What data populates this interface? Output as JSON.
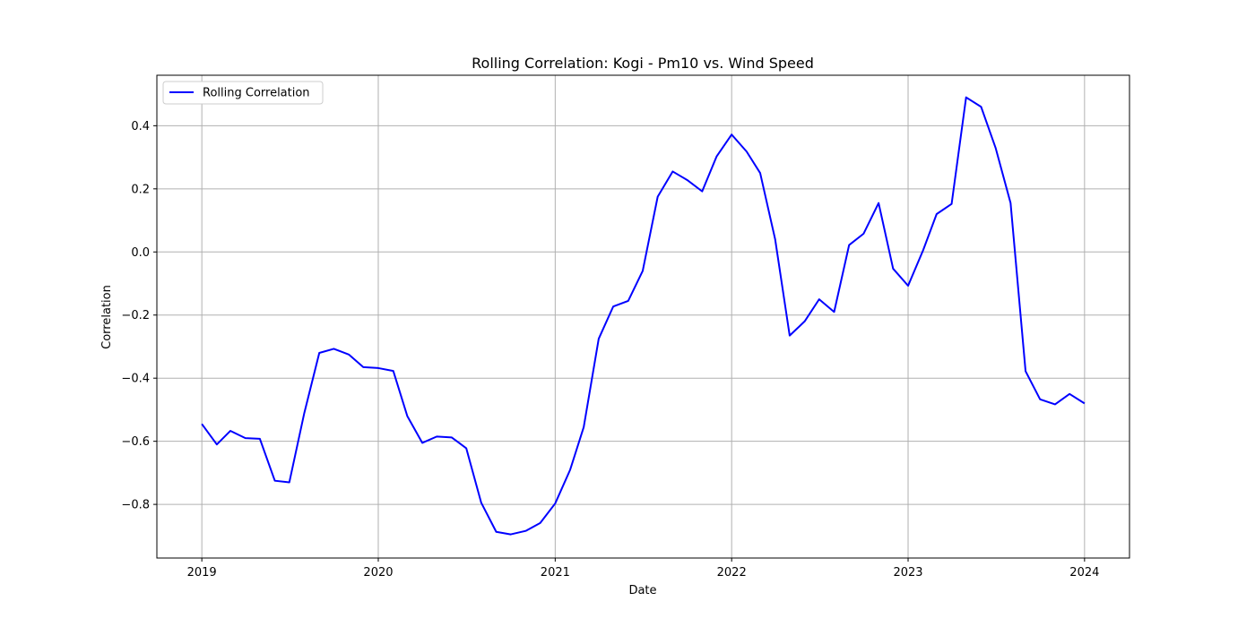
{
  "chart_data": {
    "type": "line",
    "title": "Rolling Correlation: Kogi - Pm10 vs. Wind Speed",
    "xlabel": "Date",
    "ylabel": "Correlation",
    "x_tick_labels": [
      "2019",
      "2020",
      "2021",
      "2022",
      "2023",
      "2024"
    ],
    "y_tick_labels": [
      "−0.8",
      "−0.6",
      "−0.4",
      "−0.2",
      "0.0",
      "0.2",
      "0.4"
    ],
    "y_ticks": [
      -0.8,
      -0.6,
      -0.4,
      -0.2,
      0.0,
      0.2,
      0.4
    ],
    "xlim": [
      "2018-09-30",
      "2024-04-03"
    ],
    "ylim": [
      -0.97,
      0.56
    ],
    "grid": true,
    "legend": "upper-left",
    "colors": {
      "line": "#0000ff",
      "grid": "#b0b0b0"
    },
    "series": [
      {
        "name": "Rolling Correlation",
        "x": [
          "2019-01-01",
          "2019-02-01",
          "2019-03-01",
          "2019-04-01",
          "2019-05-01",
          "2019-06-01",
          "2019-07-01",
          "2019-08-01",
          "2019-09-01",
          "2019-10-01",
          "2019-11-01",
          "2019-12-01",
          "2020-01-01",
          "2020-02-01",
          "2020-03-01",
          "2020-04-01",
          "2020-05-01",
          "2020-06-01",
          "2020-07-01",
          "2020-08-01",
          "2020-09-01",
          "2020-10-01",
          "2020-11-01",
          "2020-12-01",
          "2021-01-01",
          "2021-02-01",
          "2021-03-01",
          "2021-04-01",
          "2021-05-01",
          "2021-06-01",
          "2021-07-01",
          "2021-08-01",
          "2021-09-01",
          "2021-10-01",
          "2021-11-01",
          "2021-12-01",
          "2022-01-01",
          "2022-02-01",
          "2022-03-01",
          "2022-04-01",
          "2022-05-01",
          "2022-06-01",
          "2022-07-01",
          "2022-08-01",
          "2022-09-01",
          "2022-10-01",
          "2022-11-01",
          "2022-12-01",
          "2023-01-01",
          "2023-02-01",
          "2023-03-01",
          "2023-04-01",
          "2023-05-01",
          "2023-06-01",
          "2023-07-01",
          "2023-08-01",
          "2023-09-01",
          "2023-10-01",
          "2023-11-01",
          "2023-12-01",
          "2024-01-01"
        ],
        "values": [
          -0.545,
          -0.61,
          -0.567,
          -0.59,
          -0.592,
          -0.725,
          -0.73,
          -0.51,
          -0.32,
          -0.307,
          -0.325,
          -0.365,
          -0.368,
          -0.377,
          -0.52,
          -0.605,
          -0.585,
          -0.588,
          -0.622,
          -0.795,
          -0.887,
          -0.895,
          -0.884,
          -0.859,
          -0.797,
          -0.69,
          -0.555,
          -0.275,
          -0.173,
          -0.155,
          -0.06,
          0.175,
          0.255,
          0.228,
          0.192,
          0.303,
          0.372,
          0.318,
          0.25,
          0.04,
          -0.265,
          -0.22,
          -0.15,
          -0.19,
          0.022,
          0.058,
          0.155,
          -0.053,
          -0.107,
          0.005,
          0.12,
          0.152,
          0.49,
          0.46,
          0.33,
          0.155,
          -0.378,
          -0.467,
          -0.483,
          -0.45,
          -0.48
        ]
      }
    ]
  }
}
